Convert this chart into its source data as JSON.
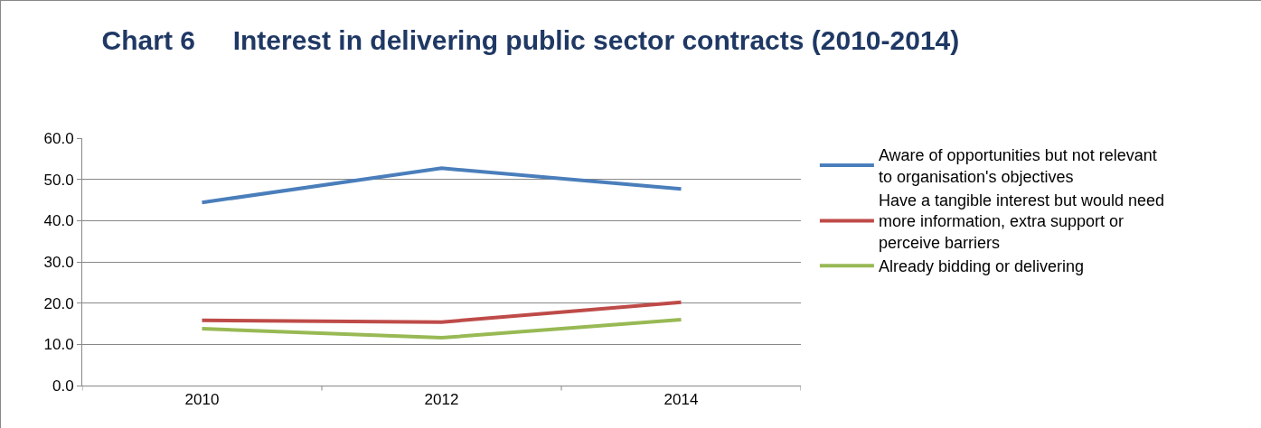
{
  "chart_data": {
    "type": "line",
    "title": "Chart 6     Interest in delivering public sector contracts (2010-2014)",
    "categories": [
      "2010",
      "2012",
      "2014"
    ],
    "series": [
      {
        "name": "Aware of opportunities but not relevant to organisation's objectives",
        "color": "#4a7ebb",
        "values": [
          44.4,
          52.7,
          47.7
        ]
      },
      {
        "name": "Have a tangible interest but would need more information, extra support or perceive barriers",
        "color": "#be4b48",
        "values": [
          15.8,
          15.4,
          20.2
        ]
      },
      {
        "name": "Already bidding or delivering",
        "color": "#98b954",
        "values": [
          13.8,
          11.6,
          16.0
        ]
      }
    ],
    "ylim": [
      0,
      60
    ],
    "yticks": [
      {
        "value": 0,
        "label": "0.0"
      },
      {
        "value": 10,
        "label": "10.0"
      },
      {
        "value": 20,
        "label": "20.0"
      },
      {
        "value": 30,
        "label": "30.0"
      },
      {
        "value": 40,
        "label": "40.0"
      },
      {
        "value": 50,
        "label": "50.0"
      },
      {
        "value": 60,
        "label": "60.0"
      }
    ],
    "grid": "y",
    "legend": "right",
    "marker": "none",
    "line_style": "solid"
  }
}
